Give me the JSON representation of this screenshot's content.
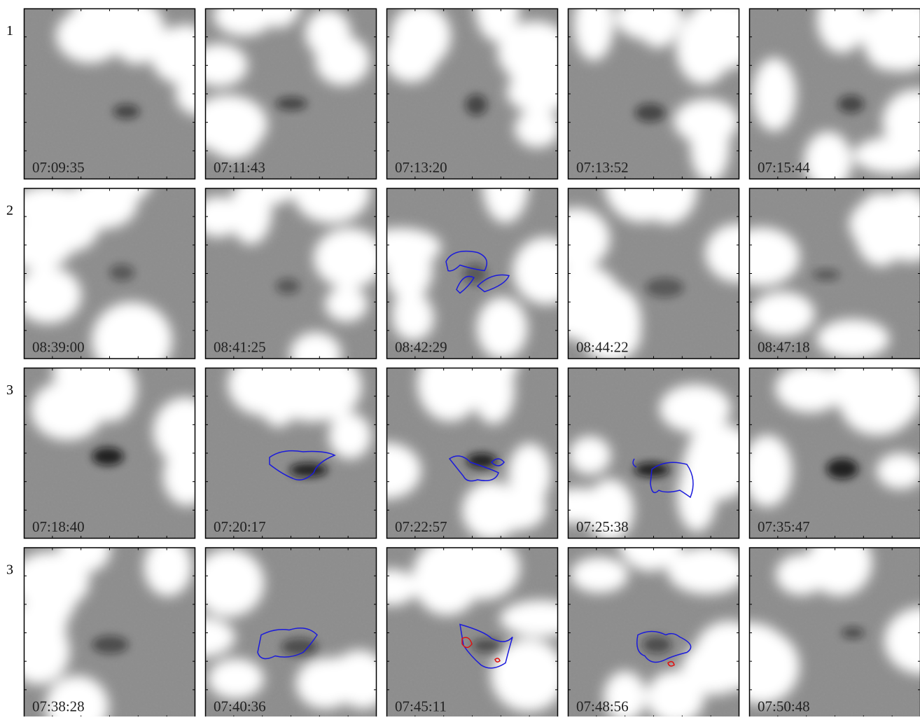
{
  "rows": [
    {
      "label": "1",
      "panels": [
        {
          "time": "07:09:35"
        },
        {
          "time": "07:11:43"
        },
        {
          "time": "07:13:20"
        },
        {
          "time": "07:13:52"
        },
        {
          "time": "07:15:44"
        }
      ]
    },
    {
      "label": "2",
      "panels": [
        {
          "time": "08:39:00"
        },
        {
          "time": "08:41:25"
        },
        {
          "time": "08:42:29"
        },
        {
          "time": "08:44:22"
        },
        {
          "time": "08:47:18"
        }
      ]
    },
    {
      "label": "3",
      "panels": [
        {
          "time": "07:18:40"
        },
        {
          "time": "07:20:17"
        },
        {
          "time": "07:22:57"
        },
        {
          "time": "07:25:38"
        },
        {
          "time": "07:35:47"
        }
      ]
    },
    {
      "label": "3",
      "panels": [
        {
          "time": "07:38:28"
        },
        {
          "time": "07:40:36"
        },
        {
          "time": "07:45:11"
        },
        {
          "time": "07:48:56"
        },
        {
          "time": "07:50:48"
        }
      ]
    }
  ]
}
